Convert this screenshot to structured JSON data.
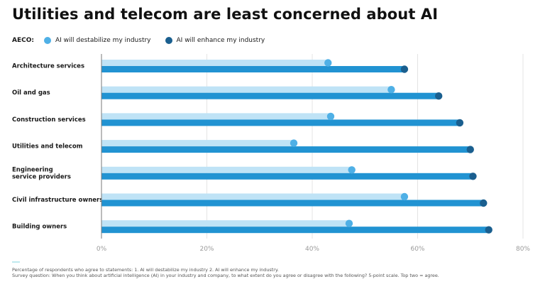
{
  "title": "Utilities and telecom are least concerned about AI",
  "legend": {
    "label": "AECO:",
    "items": [
      {
        "name": "AI will destabilize my industry",
        "color": "#4fb0e6"
      },
      {
        "name": "AI will enhance my industry",
        "color": "#1a5f8f"
      }
    ]
  },
  "colors": {
    "destabilize_bar": "#bfe3f6",
    "destabilize_dot": "#4fb0e6",
    "enhance_bar": "#2193d2",
    "enhance_dot": "#1a5f8f",
    "grid": "#e4e4e4",
    "axis": "#7a7a7a"
  },
  "chart_data": {
    "type": "bar",
    "orientation": "horizontal",
    "categories": [
      "Architecture services",
      "Oil and gas",
      "Construction services",
      "Utilities and telecom",
      "Engineering service providers",
      "Civil infrastructure owners",
      "Building owners"
    ],
    "category_lines": [
      [
        "Architecture services"
      ],
      [
        "Oil and gas"
      ],
      [
        "Construction services"
      ],
      [
        "Utilities and telecom"
      ],
      [
        "Engineering",
        "service providers"
      ],
      [
        "Civil infrastructure owners"
      ],
      [
        "Building owners"
      ]
    ],
    "series": [
      {
        "name": "AI will destabilize my industry",
        "values": [
          43,
          55,
          43.5,
          36.5,
          47.5,
          57.5,
          47
        ]
      },
      {
        "name": "AI will enhance my industry",
        "values": [
          57.5,
          64,
          68,
          70,
          70.5,
          72.5,
          73.5
        ]
      }
    ],
    "xlim": [
      0,
      80
    ],
    "xticks": [
      0,
      20,
      40,
      60,
      80
    ],
    "xtick_labels": [
      "0%",
      "20%",
      "40%",
      "60%",
      "80%"
    ],
    "grid": true,
    "legend_position": "top-left"
  },
  "footnotes": [
    "Percentage of respondents who agree to statements: 1. AI will destabilize my industry 2. AI will enhance my industry.",
    "Survey question: When you think about artificial intelligence (AI) in your industry and company, to what extent do you agree or disagree with the following? 5-point scale. Top two = agree."
  ]
}
